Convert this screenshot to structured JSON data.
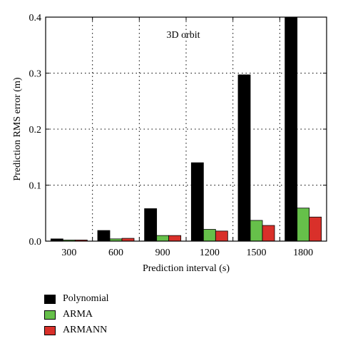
{
  "chart_data": {
    "type": "bar",
    "title": "",
    "annotation": "3D orbit",
    "xlabel": "Prediction interval (s)",
    "ylabel": "Prediction RMS error (m)",
    "categories": [
      "300",
      "600",
      "900",
      "1200",
      "1500",
      "1800"
    ],
    "ylim": [
      0,
      0.4
    ],
    "yticks": [
      "0.0",
      "0.1",
      "0.2",
      "0.3",
      "0.4"
    ],
    "grid": "dotted",
    "legend_position": "below",
    "series": [
      {
        "name": "Polynomial",
        "color": "#000000",
        "values": [
          0.004,
          0.019,
          0.058,
          0.14,
          0.297,
          0.4
        ]
      },
      {
        "name": "ARMA",
        "color": "#66c04a",
        "values": [
          0.002,
          0.004,
          0.01,
          0.021,
          0.037,
          0.059
        ]
      },
      {
        "name": "ARMANN",
        "color": "#d9302a",
        "values": [
          0.002,
          0.005,
          0.01,
          0.018,
          0.028,
          0.043
        ]
      }
    ]
  }
}
